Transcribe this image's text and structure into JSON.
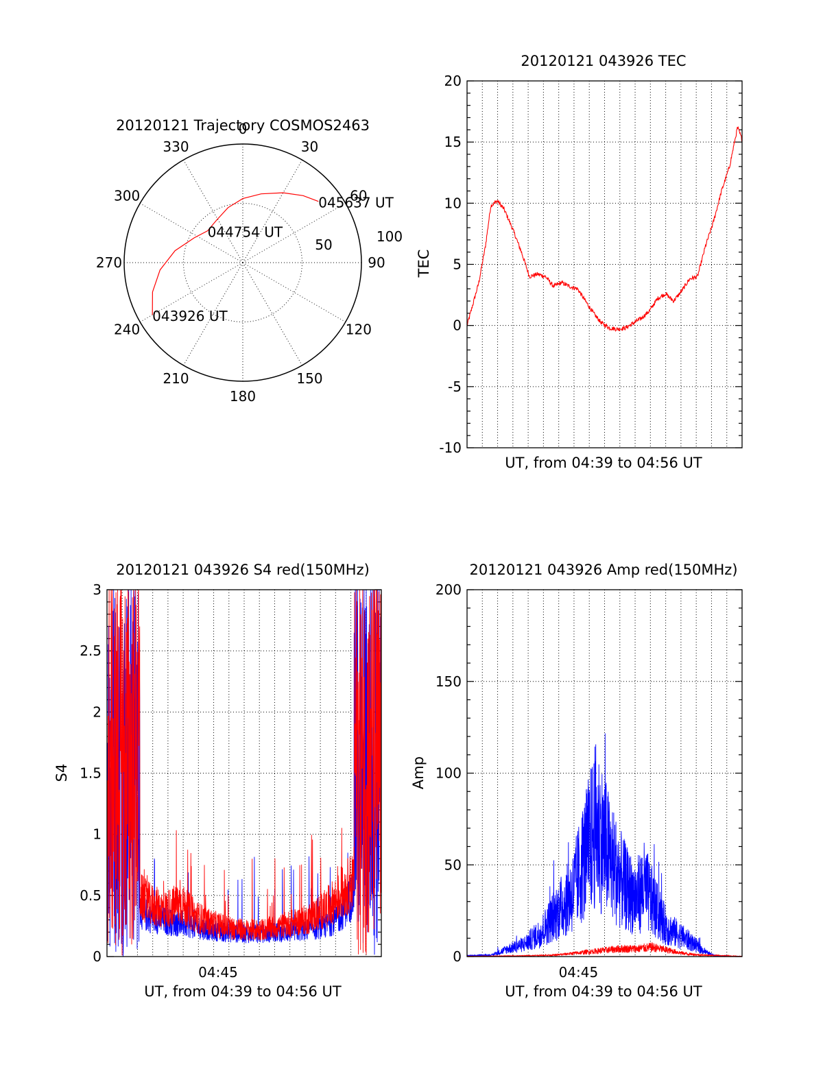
{
  "chart_data": [
    {
      "type": "polar",
      "title": "20120121 Trajectory COSMOS2463",
      "angular_ticks": [
        "0",
        "30",
        "60",
        "90",
        "120",
        "150",
        "180",
        "210",
        "240",
        "270",
        "300",
        "330"
      ],
      "radial_ticks": [
        "50",
        "100"
      ],
      "rlim": [
        0,
        100
      ],
      "grid": true,
      "series": [
        {
          "color": "#ff0000",
          "points": [
            {
              "az": 240,
              "r": 88
            },
            {
              "az": 252,
              "r": 80
            },
            {
              "az": 265,
              "r": 70
            },
            {
              "az": 280,
              "r": 58
            },
            {
              "az": 297,
              "r": 46
            },
            {
              "az": 312,
              "r": 40
            },
            {
              "az": 328,
              "r": 42
            },
            {
              "az": 345,
              "r": 48
            },
            {
              "az": 0,
              "r": 54
            },
            {
              "az": 15,
              "r": 60
            },
            {
              "az": 30,
              "r": 68
            },
            {
              "az": 42,
              "r": 76
            },
            {
              "az": 51,
              "r": 82
            }
          ]
        }
      ],
      "annotations": [
        {
          "text": "043926 UT",
          "az": 240,
          "r": 88
        },
        {
          "text": "044754 UT",
          "az": 312,
          "r": 40
        },
        {
          "text": "045637 UT",
          "az": 51,
          "r": 82
        }
      ]
    },
    {
      "type": "line",
      "title": "20120121 043926 TEC",
      "xlabel": "UT, from 04:39 to 04:56 UT",
      "ylabel": "TEC",
      "xlim_minutes": [
        "04:39",
        "04:56"
      ],
      "ylim": [
        -10,
        20
      ],
      "yticks": [
        "-10",
        "-5",
        "0",
        "5",
        "10",
        "15",
        "20"
      ],
      "grid": true,
      "series": [
        {
          "color": "#ff0000",
          "time": [
            "04:39:26",
            "04:39:45",
            "04:40:10",
            "04:40:35",
            "04:40:55",
            "04:41:20",
            "04:41:45",
            "04:42:15",
            "04:42:50",
            "04:43:20",
            "04:43:50",
            "04:44:20",
            "04:44:50",
            "04:45:20",
            "04:45:50",
            "04:46:20",
            "04:46:50",
            "04:47:20",
            "04:47:50",
            "04:48:20",
            "04:48:50",
            "04:49:20",
            "04:49:50",
            "04:50:20",
            "04:50:50",
            "04:51:20",
            "04:51:50",
            "04:52:20",
            "04:52:50",
            "04:53:20",
            "04:53:50",
            "04:54:20",
            "04:54:50",
            "04:55:20",
            "04:55:50",
            "04:56:20",
            "04:56:37"
          ],
          "values": [
            0.0,
            1.5,
            3.5,
            6.5,
            9.8,
            10.2,
            9.5,
            8.0,
            6.0,
            4.0,
            4.2,
            4.0,
            3.2,
            3.5,
            3.2,
            3.0,
            2.0,
            1.0,
            0.2,
            -0.2,
            -0.3,
            -0.2,
            0.2,
            0.6,
            1.2,
            2.2,
            2.6,
            2.0,
            2.8,
            3.8,
            4.0,
            6.5,
            8.5,
            11.0,
            13.0,
            16.2,
            15.2
          ]
        }
      ]
    },
    {
      "type": "line",
      "title": "20120121 043926 S4 red(150MHz)",
      "xlabel": "UT, from 04:39 to 04:56 UT",
      "ylabel": "S4",
      "xtick_labels": [
        "04:45"
      ],
      "ylim": [
        0,
        3
      ],
      "yticks": [
        "0",
        "0.5",
        "1",
        "1.5",
        "2",
        "2.5",
        "3"
      ],
      "grid": true,
      "series": [
        {
          "color": "#0000ff",
          "time": [
            "04:39:26",
            "04:39:40",
            "04:40:00",
            "04:40:20",
            "04:40:35",
            "04:41:00",
            "04:41:30",
            "04:42:00",
            "04:43:00",
            "04:44:00",
            "04:45:00",
            "04:46:00",
            "04:47:00",
            "04:48:00",
            "04:49:00",
            "04:50:00",
            "04:51:00",
            "04:52:00",
            "04:53:00",
            "04:54:00",
            "04:55:00",
            "04:55:20",
            "04:55:40",
            "04:56:00",
            "04:56:20",
            "04:56:37"
          ],
          "values": [
            2.8,
            3.0,
            2.6,
            2.9,
            1.9,
            0.5,
            0.35,
            0.3,
            0.27,
            0.25,
            0.22,
            0.2,
            0.18,
            0.17,
            0.17,
            0.18,
            0.18,
            0.2,
            0.22,
            0.3,
            0.5,
            1.5,
            2.8,
            3.0,
            2.6,
            1.3
          ]
        },
        {
          "color": "#ff0000",
          "time": [
            "04:39:26",
            "04:39:40",
            "04:40:00",
            "04:40:20",
            "04:40:35",
            "04:41:00",
            "04:41:30",
            "04:42:00",
            "04:43:00",
            "04:44:00",
            "04:45:00",
            "04:46:00",
            "04:47:00",
            "04:48:00",
            "04:49:00",
            "04:50:00",
            "04:51:00",
            "04:52:00",
            "04:53:00",
            "04:54:00",
            "04:55:00",
            "04:55:20",
            "04:55:40",
            "04:56:00",
            "04:56:20",
            "04:56:37"
          ],
          "values": [
            2.9,
            2.7,
            3.0,
            2.6,
            1.5,
            0.6,
            0.45,
            0.4,
            0.35,
            0.4,
            0.3,
            0.25,
            0.22,
            0.2,
            0.2,
            0.22,
            0.25,
            0.28,
            0.35,
            0.45,
            0.6,
            1.8,
            2.4,
            2.9,
            2.7,
            2.0
          ]
        }
      ]
    },
    {
      "type": "line",
      "title": "20120121 043926 Amp red(150MHz)",
      "xlabel": "UT, from 04:39 to 04:56 UT",
      "ylabel": "Amp",
      "xtick_labels": [
        "04:45"
      ],
      "ylim": [
        0,
        200
      ],
      "yticks": [
        "0",
        "50",
        "100",
        "150",
        "200"
      ],
      "grid": true,
      "series": [
        {
          "color": "#0000ff",
          "time": [
            "04:39:26",
            "04:41:00",
            "04:42:00",
            "04:43:00",
            "04:44:00",
            "04:45:00",
            "04:46:00",
            "04:46:30",
            "04:47:00",
            "04:47:30",
            "04:48:00",
            "04:48:30",
            "04:49:00",
            "04:49:30",
            "04:50:00",
            "04:50:30",
            "04:51:00",
            "04:51:30",
            "04:52:00",
            "04:52:30",
            "04:53:00",
            "04:53:30",
            "04:54:00",
            "04:54:30",
            "04:55:00",
            "04:56:00",
            "04:56:37"
          ],
          "values": [
            0.5,
            1,
            5,
            8,
            15,
            28,
            40,
            55,
            70,
            85,
            72,
            60,
            50,
            42,
            38,
            45,
            35,
            25,
            18,
            15,
            12,
            9,
            5,
            2,
            0.5,
            0.2,
            0.2
          ]
        },
        {
          "color": "#ff0000",
          "time": [
            "04:39:26",
            "04:41:00",
            "04:43:00",
            "04:45:00",
            "04:46:00",
            "04:47:00",
            "04:48:00",
            "04:49:00",
            "04:50:00",
            "04:51:00",
            "04:52:00",
            "04:53:00",
            "04:54:00",
            "04:56:37"
          ],
          "values": [
            0.2,
            0.3,
            0.5,
            1,
            2,
            3,
            4,
            5,
            5,
            6,
            4,
            2,
            1,
            0.2
          ]
        }
      ]
    }
  ]
}
